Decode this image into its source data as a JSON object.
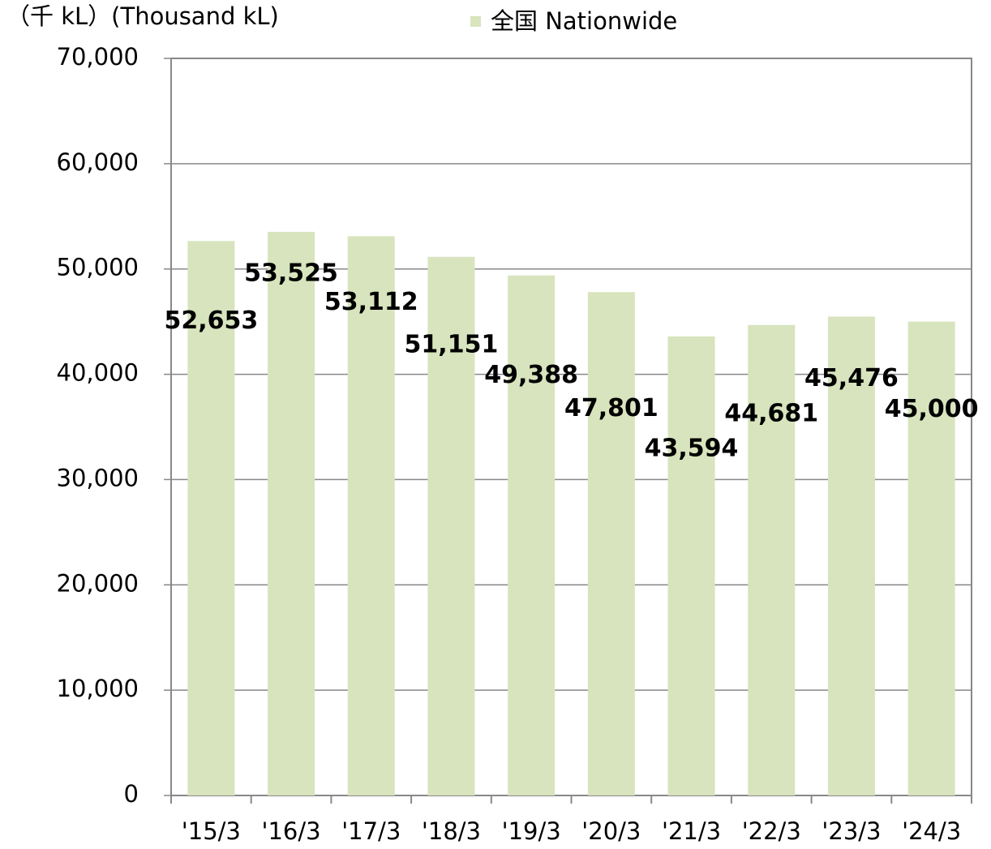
{
  "chart_data": {
    "type": "bar",
    "y_axis_label": "（千 kL）(Thousand kL)",
    "series": [
      {
        "name": "全国 Nationwide",
        "color": "#d7e4bd",
        "values": [
          52653,
          53525,
          53112,
          51151,
          49388,
          47801,
          43594,
          44681,
          45476,
          45000
        ],
        "value_labels": [
          "52,653",
          "53,525",
          "53,112",
          "51,151",
          "49,388",
          "47,801",
          "43,594",
          "44,681",
          "45,476",
          "45,000"
        ]
      }
    ],
    "categories": [
      "'15/3",
      "'16/3",
      "'17/3",
      "'18/3",
      "'19/3",
      "'20/3",
      "'21/3",
      "'22/3",
      "'23/3",
      "'24/3"
    ],
    "ylim": [
      0,
      70000
    ],
    "yticks": [
      0,
      {
        "value": 10000,
        "label": "10,000"
      },
      {
        "value": 20000,
        "label": "20,000"
      },
      {
        "value": 30000,
        "label": "30,000"
      },
      {
        "value": 40000,
        "label": "40,000"
      },
      {
        "value": 50000,
        "label": "50,000"
      },
      {
        "value": 60000,
        "label": "60,000"
      },
      {
        "value": 70000,
        "label": "70,000"
      }
    ],
    "grid": true
  }
}
